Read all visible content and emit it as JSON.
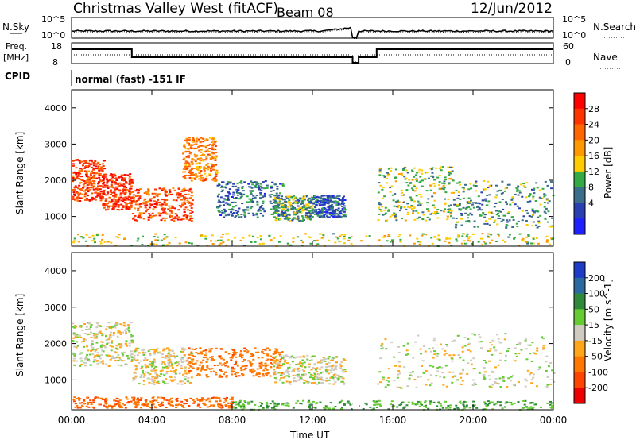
{
  "header": {
    "title": "Christmas Valley West (fitACF)",
    "beam": "Beam 08",
    "date": "12/Jun/2012"
  },
  "top_panels": {
    "nsky_label": "N.Sky",
    "nsearch_label": "N.Search",
    "freq_label": "Freq.",
    "freq_unit": "[MHz]",
    "nave_label": "Nave",
    "cpid_label": "CPID",
    "cpid_text": "normal (fast) -151 IF",
    "noise_ticks": [
      "10^5",
      "10^0"
    ],
    "freq_ticks": [
      "18",
      "8"
    ],
    "nave_ticks": [
      "60",
      "0"
    ]
  },
  "chart_data": [
    {
      "type": "heatmap",
      "name": "power",
      "xlabel": "Time UT",
      "ylabel": "Slant Range [km]",
      "xlim": [
        0,
        24
      ],
      "ylim": [
        180,
        4500
      ],
      "x_ticks": [
        "00:00",
        "04:00",
        "08:00",
        "12:00",
        "16:00",
        "20:00",
        "00:00"
      ],
      "y_ticks": [
        1000,
        2000,
        3000,
        4000
      ],
      "colorbar_label": "Power [dB]",
      "colorbar_ticks": [
        "28",
        "24",
        "20",
        "16",
        "12",
        "8",
        "4"
      ],
      "colorbar_colors": [
        "#ff0000",
        "#ff3300",
        "#ff6600",
        "#ff9900",
        "#ffcc00",
        "#33aa44",
        "#3a6e8a",
        "#2a3fb0",
        "#1e20ff"
      ],
      "echo_regions": [
        {
          "t": [
            0.0,
            1.6
          ],
          "r": [
            1450,
            2600
          ],
          "level": 26
        },
        {
          "t": [
            1.5,
            3.0
          ],
          "r": [
            1200,
            2200
          ],
          "level": 27
        },
        {
          "t": [
            3.0,
            6.0
          ],
          "r": [
            900,
            1800
          ],
          "level": 25
        },
        {
          "t": [
            5.5,
            7.2
          ],
          "r": [
            2000,
            3200
          ],
          "level": 22
        },
        {
          "t": [
            7.2,
            10.5
          ],
          "r": [
            1000,
            2000
          ],
          "level": 9
        },
        {
          "t": [
            10.0,
            12.0
          ],
          "r": [
            900,
            1600
          ],
          "level": 12
        },
        {
          "t": [
            12.0,
            13.6
          ],
          "r": [
            1000,
            1600
          ],
          "level": 8
        },
        {
          "t": [
            15.2,
            19.0
          ],
          "r": [
            900,
            2400
          ],
          "level": 14
        },
        {
          "t": [
            19.0,
            24.0
          ],
          "r": [
            700,
            2000
          ],
          "level": 12
        },
        {
          "t": [
            0.0,
            24.0
          ],
          "r": [
            200,
            550
          ],
          "level": 16
        }
      ]
    },
    {
      "type": "heatmap",
      "name": "velocity",
      "xlabel": "Time UT",
      "ylabel": "Slant Range [km]",
      "xlim": [
        0,
        24
      ],
      "ylim": [
        180,
        4500
      ],
      "x_ticks": [
        "00:00",
        "04:00",
        "08:00",
        "12:00",
        "16:00",
        "20:00",
        "00:00"
      ],
      "y_ticks": [
        1000,
        2000,
        3000,
        4000
      ],
      "colorbar_label": "Velocity [m s^-1]",
      "colorbar_ticks": [
        "200",
        "100",
        "50",
        "15",
        "-15",
        "-50",
        "-100",
        "-200"
      ],
      "colorbar_colors": [
        "#1e3cc8",
        "#2a6aa0",
        "#2e8a3a",
        "#66cc33",
        "#cfcbc0",
        "#ffa61a",
        "#ff7700",
        "#ff4400",
        "#ee0000"
      ],
      "echo_regions": [
        {
          "t": [
            0.0,
            3.0
          ],
          "r": [
            1400,
            2600
          ],
          "level": 0
        },
        {
          "t": [
            3.0,
            6.0
          ],
          "r": [
            900,
            1900
          ],
          "level": -5
        },
        {
          "t": [
            5.8,
            10.5
          ],
          "r": [
            1100,
            1900
          ],
          "level": -60
        },
        {
          "t": [
            10.0,
            13.6
          ],
          "r": [
            900,
            1700
          ],
          "level": 0
        },
        {
          "t": [
            15.2,
            24.0
          ],
          "r": [
            800,
            2300
          ],
          "level": 0
        },
        {
          "t": [
            0.0,
            8.0
          ],
          "r": [
            250,
            550
          ],
          "level": -70
        },
        {
          "t": [
            8.0,
            24.0
          ],
          "r": [
            200,
            450
          ],
          "level": 30
        }
      ]
    }
  ]
}
